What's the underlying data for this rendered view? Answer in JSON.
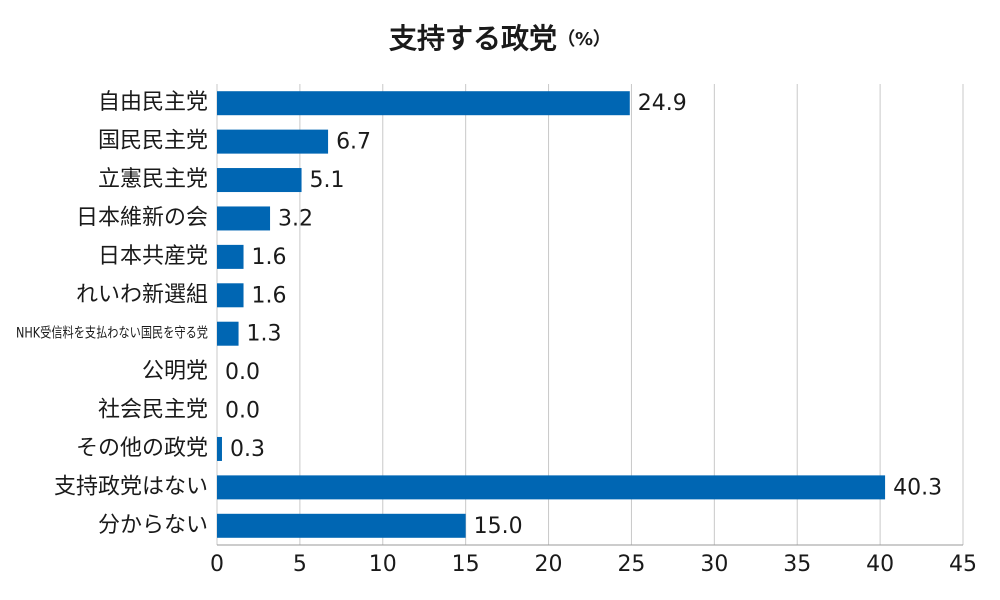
{
  "chart_data": {
    "type": "bar",
    "orientation": "horizontal",
    "title": "支持する政党",
    "title_unit": "（%）",
    "categories": [
      "自由民主党",
      "国民民主党",
      "立憲民主党",
      "日本維新の会",
      "日本共産党",
      "れいわ新選組",
      "NHK受信料を支払わない国民を守る党",
      "公明党",
      "社会民主党",
      "その他の政党",
      "支持政党はない",
      "分からない"
    ],
    "values": [
      24.9,
      6.7,
      5.1,
      3.2,
      1.6,
      1.6,
      1.3,
      0,
      0,
      0.3,
      40.3,
      15
    ],
    "value_labels": [
      "24.9",
      "6.7",
      "5.1",
      "3.2",
      "1.6",
      "1.6",
      "1.3",
      "0.0",
      "0.0",
      "0.3",
      "40.3",
      "15.0"
    ],
    "color": "#0066b3",
    "xlim": [
      0,
      45
    ],
    "xticks": [
      0,
      5,
      10,
      15,
      20,
      25,
      30,
      35,
      40,
      45
    ],
    "grid": true
  }
}
